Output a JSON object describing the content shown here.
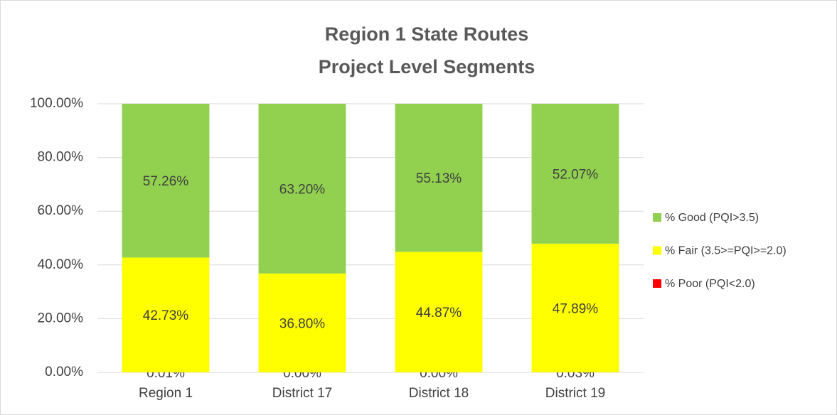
{
  "chart_data": {
    "type": "stacked_bar",
    "title": [
      "Region 1 State Routes",
      "Project Level Segments"
    ],
    "categories": [
      "Region 1",
      "District 17",
      "District 18",
      "District 19"
    ],
    "series": [
      {
        "name": "% Poor (PQI<2.0)",
        "color": "#ff0000",
        "values": [
          0.01,
          0,
          0,
          0.03
        ],
        "value_labels": [
          "0.01%",
          "0.00%",
          "0.00%",
          "0.03%"
        ]
      },
      {
        "name": "% Fair (3.5>=PQI>=2.0)",
        "color": "#ffff00",
        "values": [
          42.73,
          36.8,
          44.87,
          47.89
        ],
        "value_labels": [
          "42.73%",
          "36.80%",
          "44.87%",
          "47.89%"
        ]
      },
      {
        "name": "% Good (PQI>3.5)",
        "color": "#92d050",
        "values": [
          57.26,
          63.2,
          55.13,
          52.07
        ],
        "value_labels": [
          "57.26%",
          "63.20%",
          "55.13%",
          "52.07%"
        ]
      }
    ],
    "ylim": [
      0,
      100
    ],
    "yticks": [
      {
        "value": 0,
        "label": "0.00%"
      },
      {
        "value": 20,
        "label": "20.00%"
      },
      {
        "value": 40,
        "label": "40.00%"
      },
      {
        "value": 60,
        "label": "60.00%"
      },
      {
        "value": 80,
        "label": "80.00%"
      },
      {
        "value": 100,
        "label": "100.00%"
      }
    ],
    "grid": true,
    "legend": "right"
  }
}
